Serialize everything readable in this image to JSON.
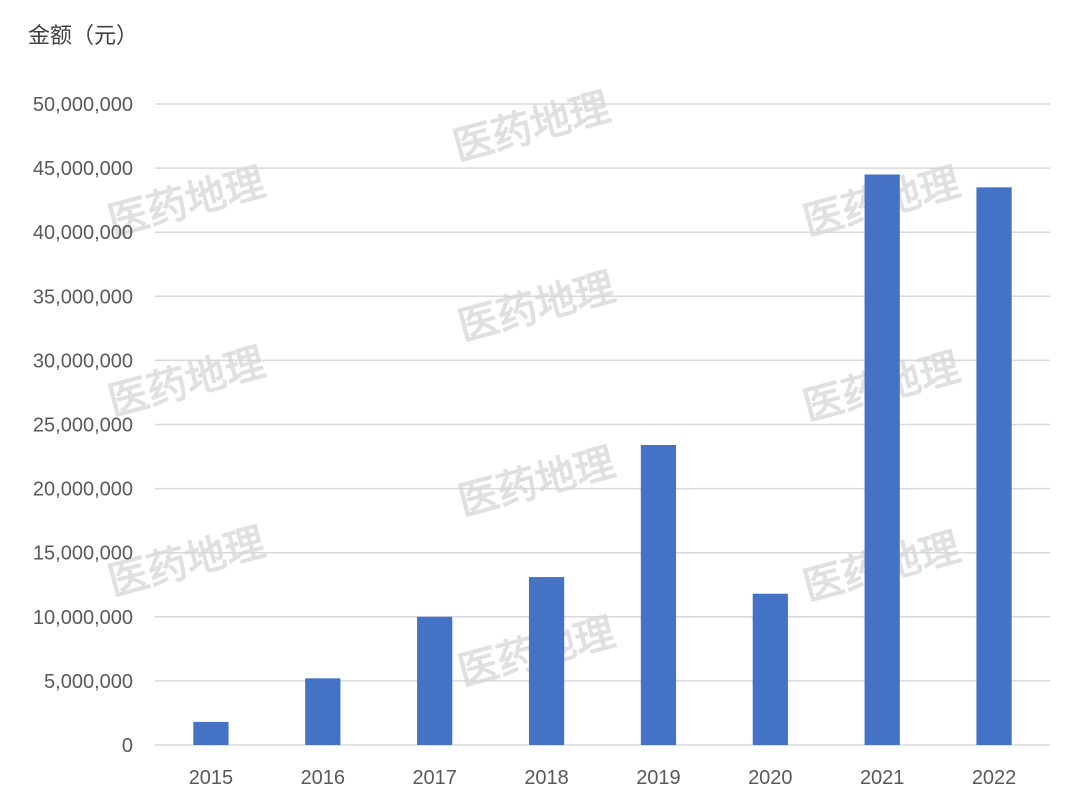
{
  "chart_data": {
    "type": "bar",
    "title": "",
    "xlabel": "",
    "ylabel": "金额（元）",
    "categories": [
      "2015",
      "2016",
      "2017",
      "2018",
      "2019",
      "2020",
      "2021",
      "2022"
    ],
    "values": [
      1800000,
      5200000,
      10000000,
      13100000,
      23400000,
      11800000,
      44500000,
      43500000
    ],
    "ylim": [
      0,
      50000000
    ],
    "yticks": [
      0,
      5000000,
      10000000,
      15000000,
      20000000,
      25000000,
      30000000,
      35000000,
      40000000,
      45000000,
      50000000
    ],
    "ytick_labels": [
      "0",
      "5,000,000",
      "10,000,000",
      "15,000,000",
      "20,000,000",
      "25,000,000",
      "30,000,000",
      "35,000,000",
      "40,000,000",
      "45,000,000",
      "50,000,000"
    ],
    "bar_color": "#4472C4",
    "grid": true,
    "legend": "none"
  },
  "watermark": {
    "text": "医药地理"
  }
}
